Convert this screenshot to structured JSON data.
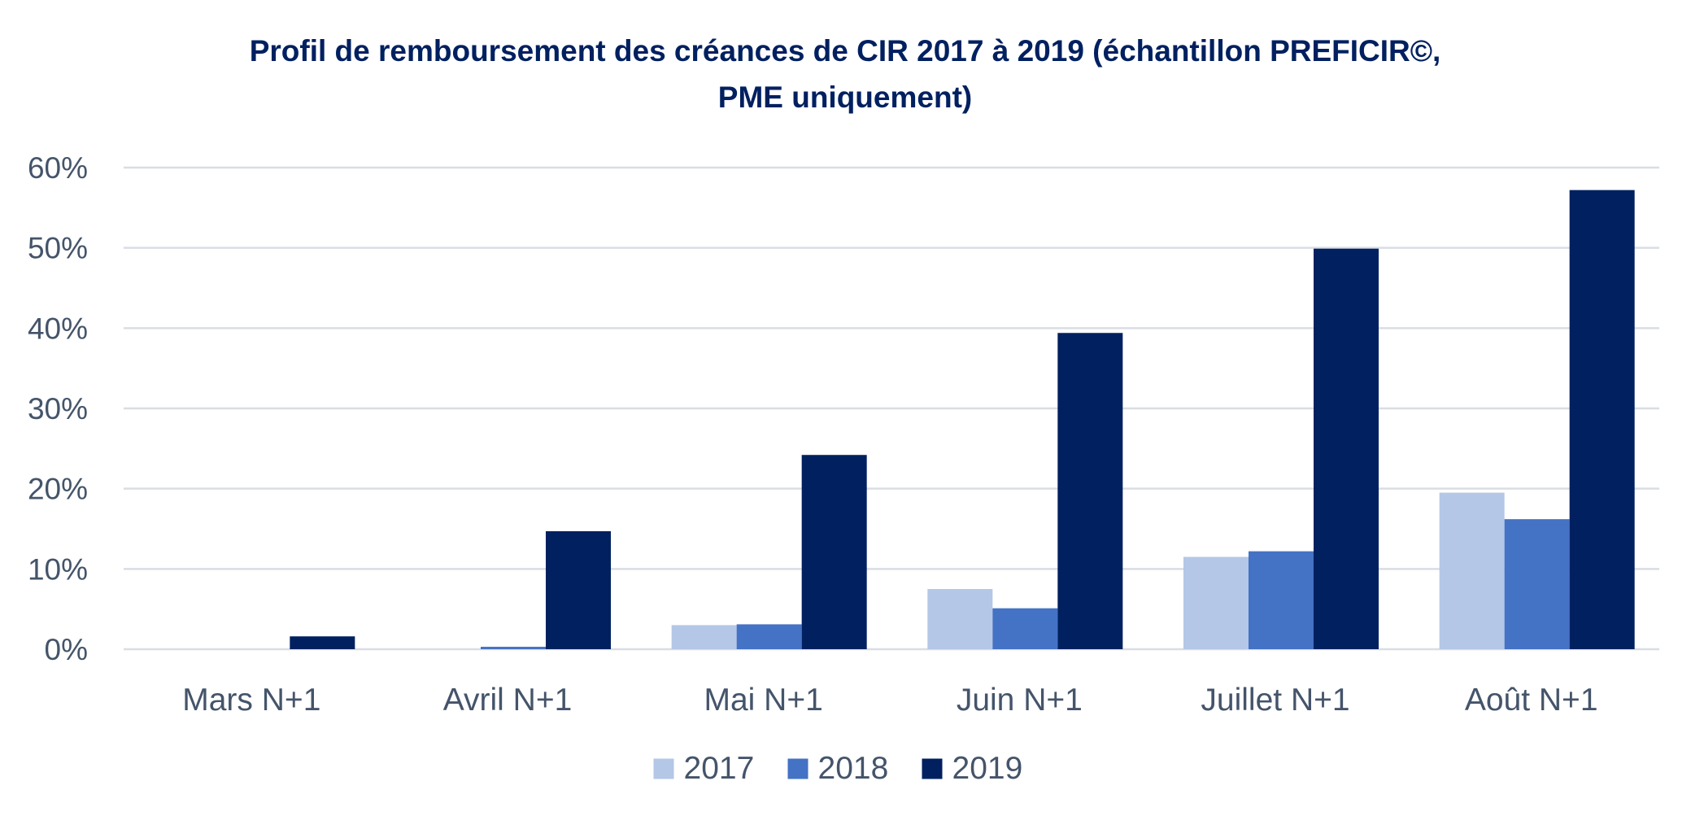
{
  "chart_data": {
    "type": "bar",
    "title_line1": "Profil de remboursement des créances de CIR 2017 à 2019 (échantillon PREFICIR©,",
    "title_line2": "PME uniquement)",
    "categories": [
      "Mars N+1",
      "Avril N+1",
      "Mai N+1",
      "Juin N+1",
      "Juillet N+1",
      "Août N+1"
    ],
    "series": [
      {
        "name": "2017",
        "color": "#B4C7E7",
        "values": [
          0,
          0,
          3.0,
          7.5,
          11.5,
          19.5
        ]
      },
      {
        "name": "2018",
        "color": "#4472C4",
        "values": [
          0,
          0.3,
          3.1,
          5.1,
          12.2,
          16.2
        ]
      },
      {
        "name": "2019",
        "color": "#002060",
        "values": [
          1.6,
          14.7,
          24.2,
          39.4,
          49.9,
          57.2
        ]
      }
    ],
    "ylim": [
      0,
      60
    ],
    "yticks": [
      0,
      10,
      20,
      30,
      40,
      50,
      60
    ],
    "ytick_labels": [
      "0%",
      "10%",
      "20%",
      "30%",
      "40%",
      "50%",
      "60%"
    ],
    "xlabel": "",
    "ylabel": "",
    "grid": true,
    "legend_position": "bottom"
  },
  "colors": {
    "title": "#002060",
    "axis_text": "#44546A",
    "gridline": "#D9DDE4"
  }
}
